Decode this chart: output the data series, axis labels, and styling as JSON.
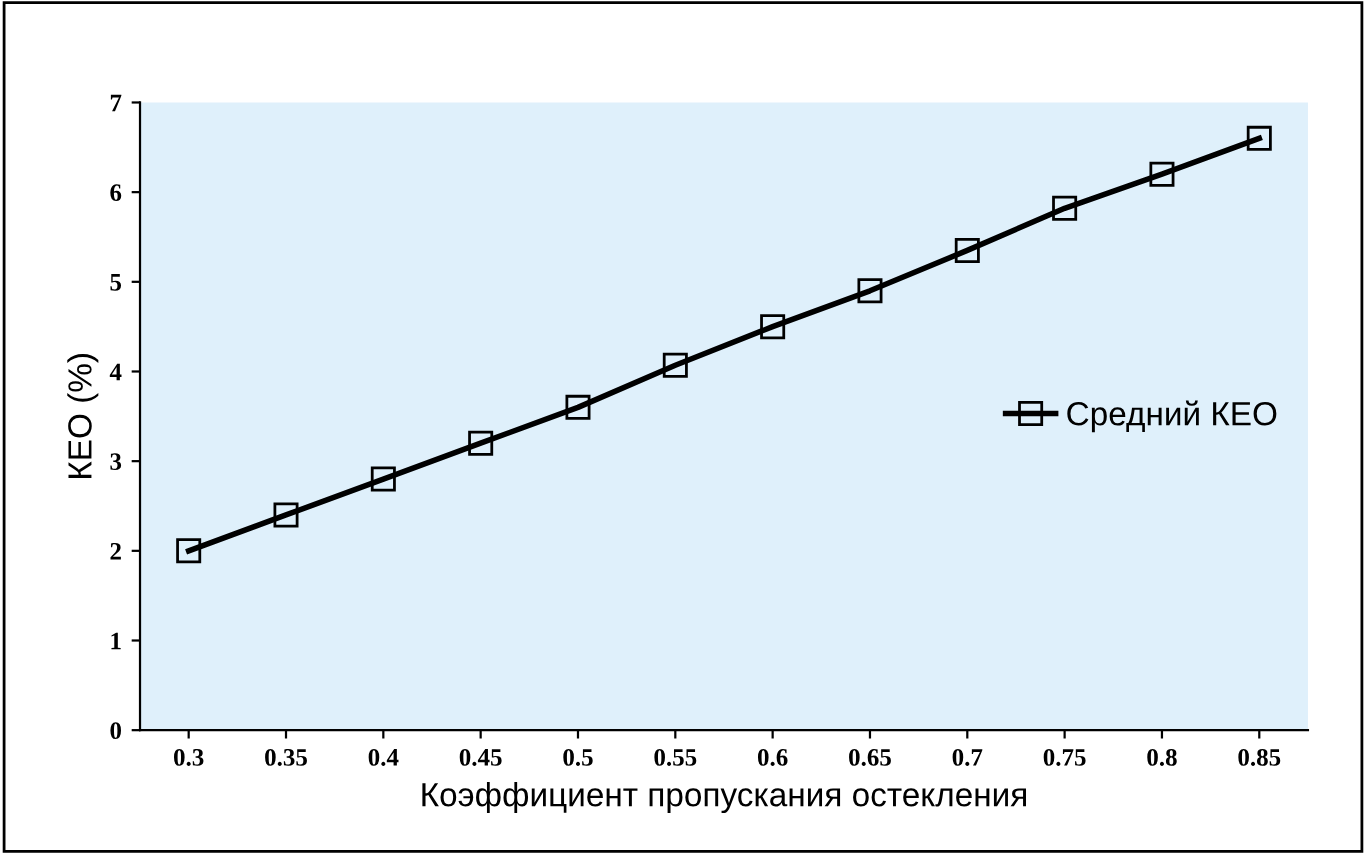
{
  "chart_data": {
    "type": "line",
    "xlabel": "Коэффициент пропускания остекления",
    "ylabel": "КЕО (%)",
    "categories": [
      "0.3",
      "0.35",
      "0.4",
      "0.45",
      "0.5",
      "0.55",
      "0.6",
      "0.65",
      "0.7",
      "0.75",
      "0.8",
      "0.85"
    ],
    "series": [
      {
        "name": "Средний КЕО",
        "color": "#000000",
        "values": [
          2.0,
          2.4,
          2.8,
          3.2,
          3.6,
          4.07,
          4.5,
          4.9,
          5.35,
          5.82,
          6.2,
          6.6
        ]
      }
    ],
    "ylim": [
      0,
      7
    ],
    "yticks": [
      0,
      1,
      2,
      3,
      4,
      5,
      6,
      7
    ],
    "marker": "square",
    "line_style": "solid",
    "legend": "center right",
    "grid": false
  }
}
